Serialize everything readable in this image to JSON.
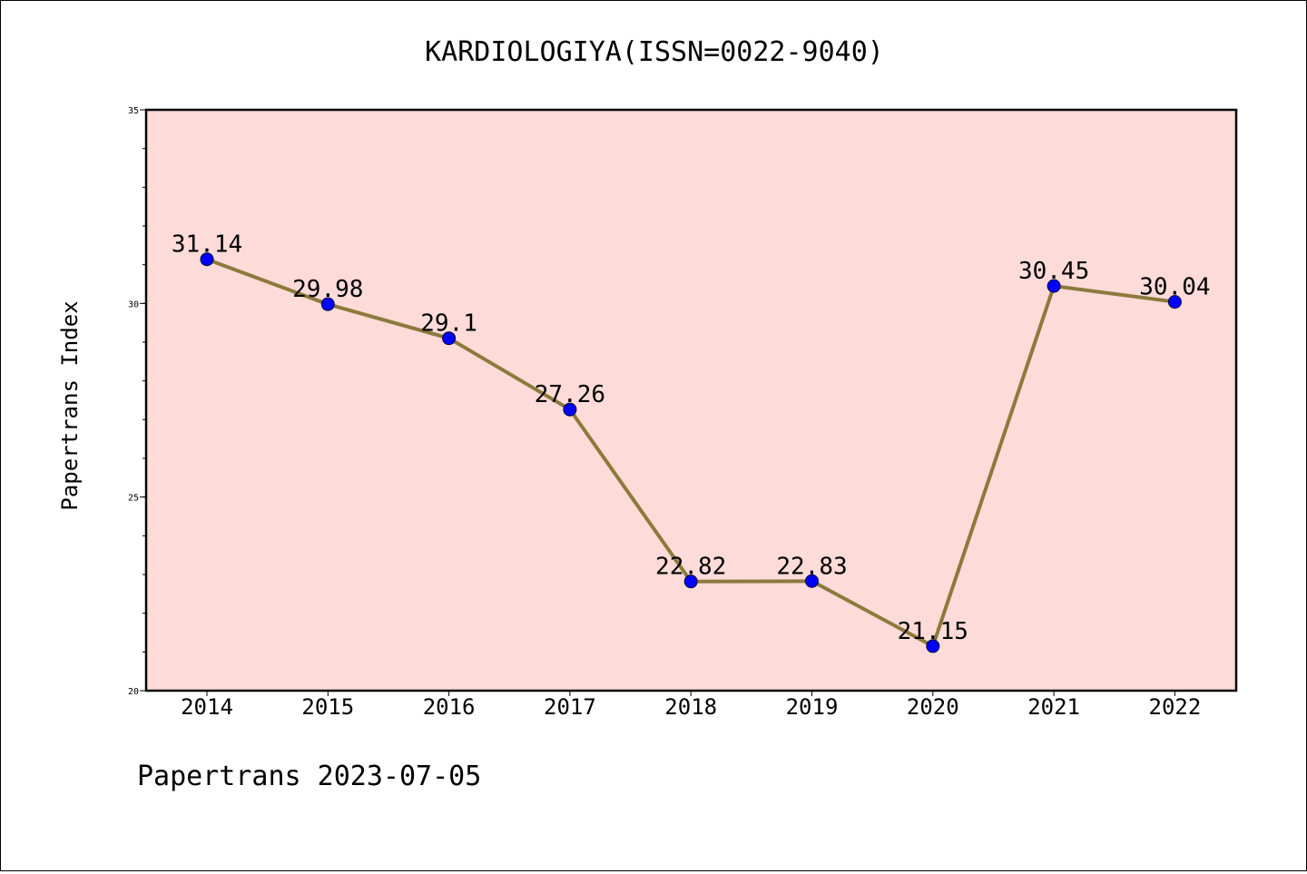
{
  "chart_data": {
    "type": "line",
    "title": "KARDIOLOGIYA(ISSN=0022-9040)",
    "xlabel": "",
    "ylabel": "Papertrans Index",
    "categories": [
      "2014",
      "2015",
      "2016",
      "2017",
      "2018",
      "2019",
      "2020",
      "2021",
      "2022"
    ],
    "values": [
      31.14,
      29.98,
      29.1,
      27.26,
      22.82,
      22.83,
      21.15,
      30.45,
      30.04
    ],
    "data_labels": [
      "31.14",
      "29.98",
      "29.1",
      "27.26",
      "22.82",
      "22.83",
      "21.15",
      "30.45",
      "30.04"
    ],
    "ylim": [
      20,
      35
    ],
    "yticks": [
      "20",
      "25",
      "30",
      "35"
    ],
    "grid": false,
    "plot_background": "#fddbd8",
    "line_color": "#8c7a3c",
    "marker_color": "#0000ff",
    "footer": "Papertrans 2023-07-05"
  }
}
